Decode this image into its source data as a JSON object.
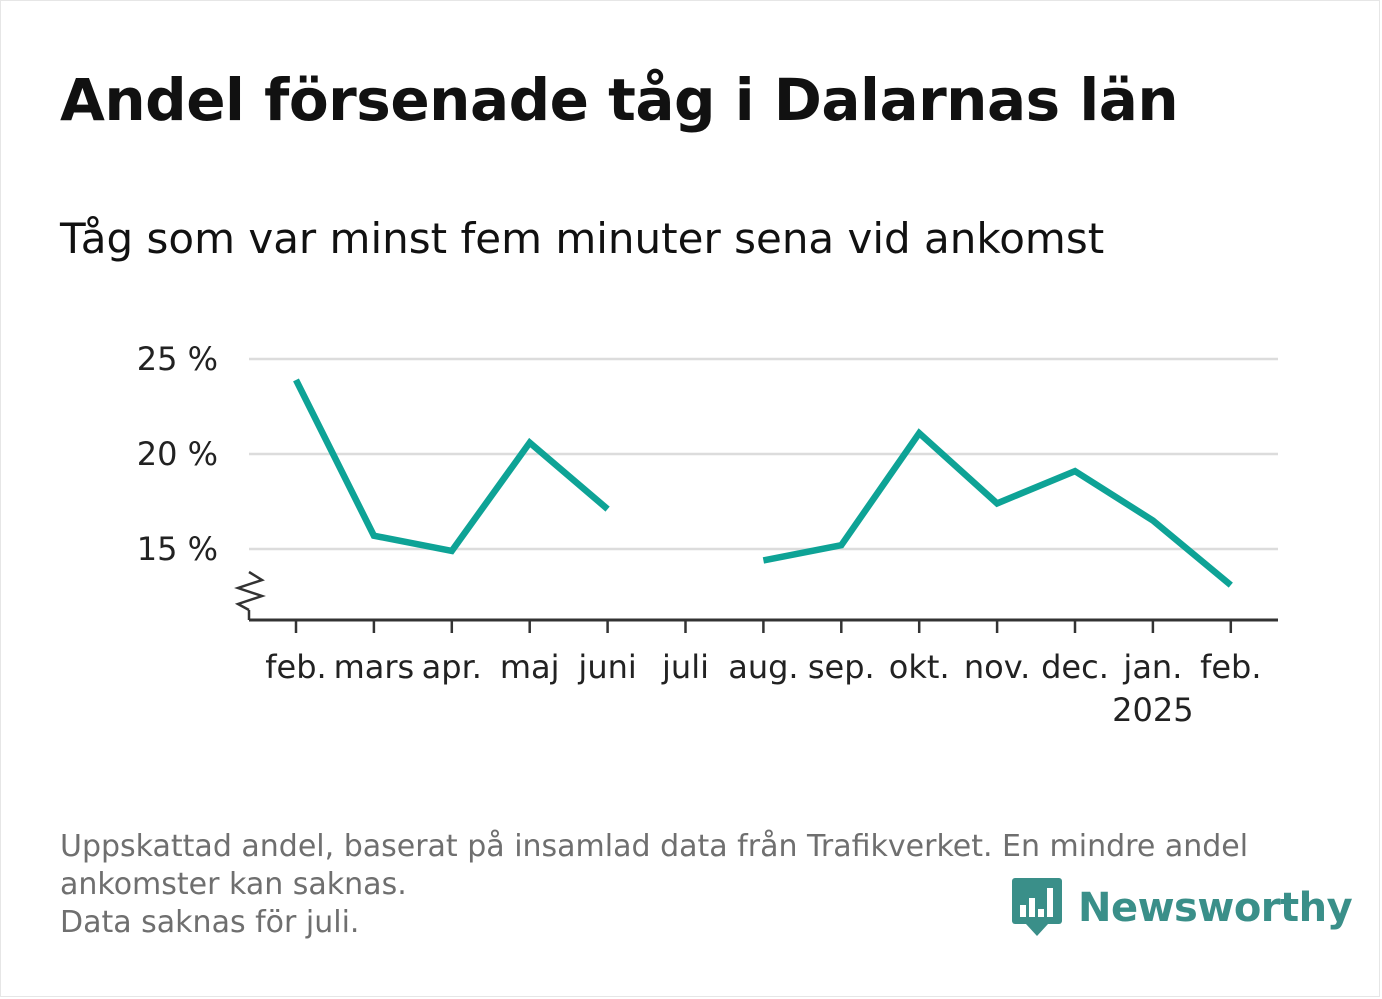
{
  "title": "Andel försenade tåg i Dalarnas län",
  "subtitle": "Tåg som var minst fem minuter sena vid ankomst",
  "footnote": {
    "line1": "Uppskattad andel, baserat på insamlad data från Trafikverket. En mindre andel",
    "line2": "ankomster kan saknas.",
    "line3": "Data saknas för juli."
  },
  "brand": {
    "name": "Newsworthy",
    "icon": "bar-chart-speech-bubble-icon",
    "color": "#3a8f89"
  },
  "chart_data": {
    "type": "line",
    "categories": [
      "feb.",
      "mars",
      "apr.",
      "maj",
      "juni",
      "juli",
      "aug.",
      "sep.",
      "okt.",
      "nov.",
      "dec.",
      "jan.",
      "feb."
    ],
    "year_label": "2025",
    "year_label_under": 11,
    "series": [
      {
        "values": [
          23.9,
          15.7,
          14.9,
          20.6,
          17.1,
          null,
          14.4,
          15.2,
          21.1,
          17.4,
          19.1,
          16.5,
          13.1
        ]
      }
    ],
    "y_ticks": [
      15,
      20,
      25
    ],
    "y_tick_labels": [
      "15 %",
      "20 %",
      "25 %"
    ],
    "ylim": [
      11.5,
      25
    ],
    "y_axis_break": true,
    "grid": true,
    "line_color": "#0ea396",
    "xlabel": "",
    "ylabel": ""
  }
}
